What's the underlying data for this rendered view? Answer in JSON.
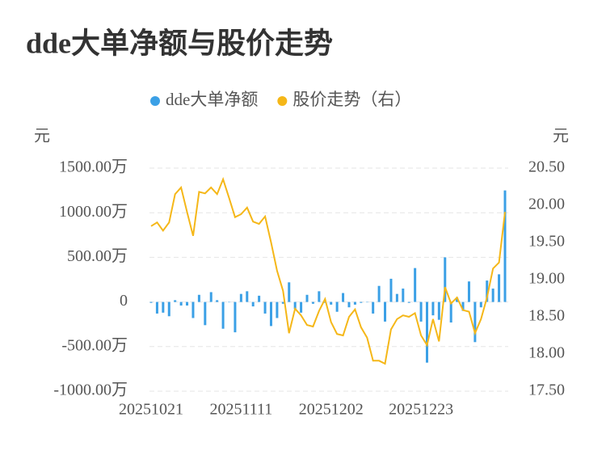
{
  "chart_data": {
    "type": "bar+line",
    "title": "dde大单净额与股价走势",
    "y_label": "元",
    "y2_label": "元",
    "categories": [
      "20251021",
      null,
      null,
      null,
      null,
      null,
      null,
      null,
      null,
      null,
      null,
      null,
      null,
      null,
      null,
      "20251111",
      null,
      null,
      null,
      null,
      null,
      null,
      null,
      null,
      null,
      null,
      null,
      null,
      null,
      null,
      "20251202",
      null,
      null,
      null,
      null,
      null,
      null,
      null,
      null,
      null,
      null,
      null,
      null,
      null,
      null,
      "20251223",
      null,
      null,
      null,
      null,
      null,
      null,
      null,
      null,
      null,
      null,
      null,
      null,
      null,
      null
    ],
    "series": [
      {
        "name": "dde大单净额",
        "color": "#3ba0e6",
        "type": "bar",
        "values": [
          -10,
          -130,
          -120,
          -160,
          20,
          -40,
          -40,
          -180,
          80,
          -260,
          110,
          20,
          -300,
          0,
          -340,
          90,
          120,
          -50,
          70,
          -130,
          -270,
          -180,
          -20,
          220,
          -80,
          -120,
          80,
          -20,
          120,
          -10,
          -30,
          -110,
          100,
          -60,
          -30,
          -10,
          0,
          -130,
          180,
          -220,
          260,
          90,
          150,
          -10,
          380,
          -220,
          -680,
          -150,
          -200,
          500,
          -230,
          50,
          -100,
          230,
          -450,
          -60,
          240,
          150,
          310,
          1250
        ]
      },
      {
        "name": "股价走势（右）",
        "color": "#f5b718",
        "type": "line",
        "axis": "y2",
        "values": [
          19.72,
          19.77,
          19.66,
          19.77,
          20.15,
          20.24,
          19.91,
          19.59,
          20.18,
          20.16,
          20.24,
          20.15,
          20.35,
          20.1,
          19.84,
          19.88,
          19.97,
          19.78,
          19.75,
          19.85,
          19.5,
          19.12,
          18.85,
          18.28,
          18.61,
          18.52,
          18.39,
          18.37,
          18.58,
          18.74,
          18.43,
          18.27,
          18.25,
          18.5,
          18.6,
          18.36,
          18.22,
          17.91,
          17.91,
          17.87,
          18.33,
          18.47,
          18.52,
          18.5,
          18.55,
          18.25,
          18.12,
          18.47,
          18.17,
          18.9,
          18.68,
          18.76,
          18.59,
          18.57,
          18.28,
          18.47,
          18.76,
          19.15,
          19.23,
          19.91
        ]
      }
    ],
    "ylim": [
      -1000,
      1500
    ],
    "yticks": [
      {
        "value": -1000,
        "label": "-1000.00万"
      },
      {
        "value": -500,
        "label": "-500.00万"
      },
      0,
      {
        "value": 500,
        "label": "500.00万"
      },
      {
        "value": 1000,
        "label": "1000.00万"
      },
      {
        "value": 1500,
        "label": "1500.00万"
      }
    ],
    "y2lim": [
      17.5,
      20.5
    ],
    "y2ticks": [
      {
        "value": 17.5,
        "label": "17.50"
      },
      {
        "value": 18,
        "label": "18.00"
      },
      {
        "value": 18.5,
        "label": "18.50"
      },
      {
        "value": 19,
        "label": "19.00"
      },
      {
        "value": 19.5,
        "label": "19.50"
      },
      {
        "value": 20,
        "label": "20.00"
      },
      {
        "value": 20.5,
        "label": "20.50"
      }
    ],
    "grid": true
  }
}
